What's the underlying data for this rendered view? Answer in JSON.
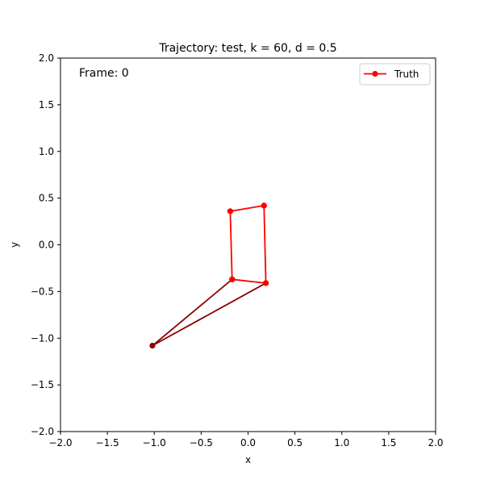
{
  "chart_data": {
    "type": "line",
    "title": "Trajectory: test, k = 60, d = 0.5",
    "xlabel": "x",
    "ylabel": "y",
    "xlim": [
      -2.0,
      2.0
    ],
    "ylim": [
      -2.0,
      2.0
    ],
    "xticks": [
      -2.0,
      -1.5,
      -1.0,
      -0.5,
      0.0,
      0.5,
      1.0,
      1.5,
      2.0
    ],
    "yticks": [
      -2.0,
      -1.5,
      -1.0,
      -0.5,
      0.0,
      0.5,
      1.0,
      1.5,
      2.0
    ],
    "xtick_labels": [
      "−2.0",
      "−1.5",
      "−1.0",
      "−0.5",
      "0.0",
      "0.5",
      "1.0",
      "1.5",
      "2.0"
    ],
    "ytick_labels": [
      "−2.0",
      "−1.5",
      "−1.0",
      "−0.5",
      "0.0",
      "0.5",
      "1.0",
      "1.5",
      "2.0"
    ],
    "grid": false,
    "annotation": "Frame: 0",
    "legend": {
      "position": "top-right",
      "entries": [
        "Truth"
      ]
    },
    "colors": {
      "truth": "#ff0000",
      "dark": "#8b0000"
    },
    "series": [
      {
        "name": "Truth",
        "color": "#ff0000",
        "x": [
          0.17,
          -0.19,
          -0.17,
          0.19,
          0.17
        ],
        "y": [
          0.42,
          0.36,
          -0.37,
          -0.41,
          0.42
        ]
      },
      {
        "name": "",
        "color": "#8b0000",
        "x": [
          -0.17,
          -1.02,
          0.19
        ],
        "y": [
          -0.37,
          -1.08,
          -0.41
        ]
      }
    ]
  }
}
